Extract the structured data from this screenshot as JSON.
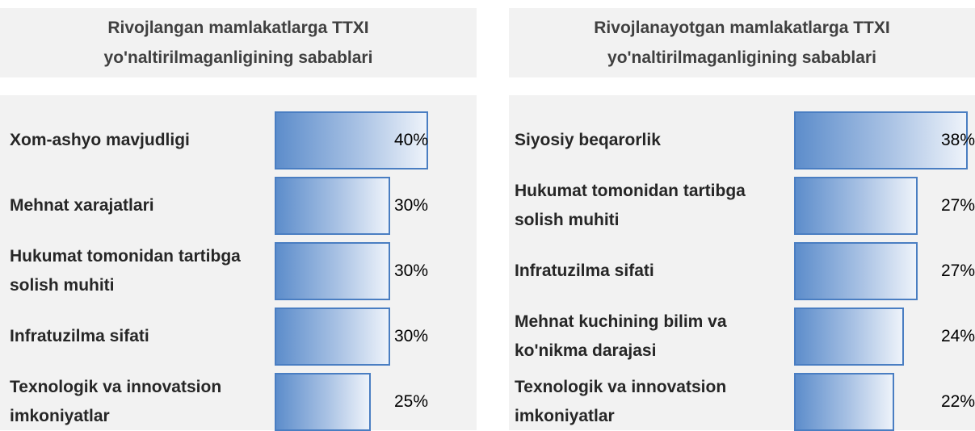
{
  "chart_data": [
    {
      "type": "bar",
      "orientation": "horizontal",
      "title": "Rivojlangan mamlakatlarga TTXI yo'naltirilmaganligining sabablari",
      "categories": [
        "Xom-ashyo mavjudligi",
        "Mehnat xarajatlari",
        "Hukumat tomonidan tartibga solish muhiti",
        "Infratuzilma sifati",
        "Texnologik va innovatsion imkoniyatlar"
      ],
      "values": [
        40,
        30,
        30,
        30,
        25
      ],
      "value_labels": [
        "40%",
        "30%",
        "30%",
        "30%",
        "25%"
      ],
      "xlim": [
        0,
        40
      ],
      "color": "#5d8dcb"
    },
    {
      "type": "bar",
      "orientation": "horizontal",
      "title": "Rivojlanayotgan mamlakatlarga TTXI yo'naltirilmaganligining sabablari",
      "categories": [
        "Siyosiy beqarorlik",
        "Hukumat tomonidan tartibga solish muhiti",
        "Infratuzilma sifati",
        "Mehnat kuchining bilim va ko'nikma darajasi",
        "Texnologik va innovatsion imkoniyatlar"
      ],
      "values": [
        38,
        27,
        27,
        24,
        22
      ],
      "value_labels": [
        "38%",
        "27%",
        "27%",
        "24%",
        "22%"
      ],
      "xlim": [
        0,
        38
      ],
      "color": "#5d8dcb"
    }
  ]
}
